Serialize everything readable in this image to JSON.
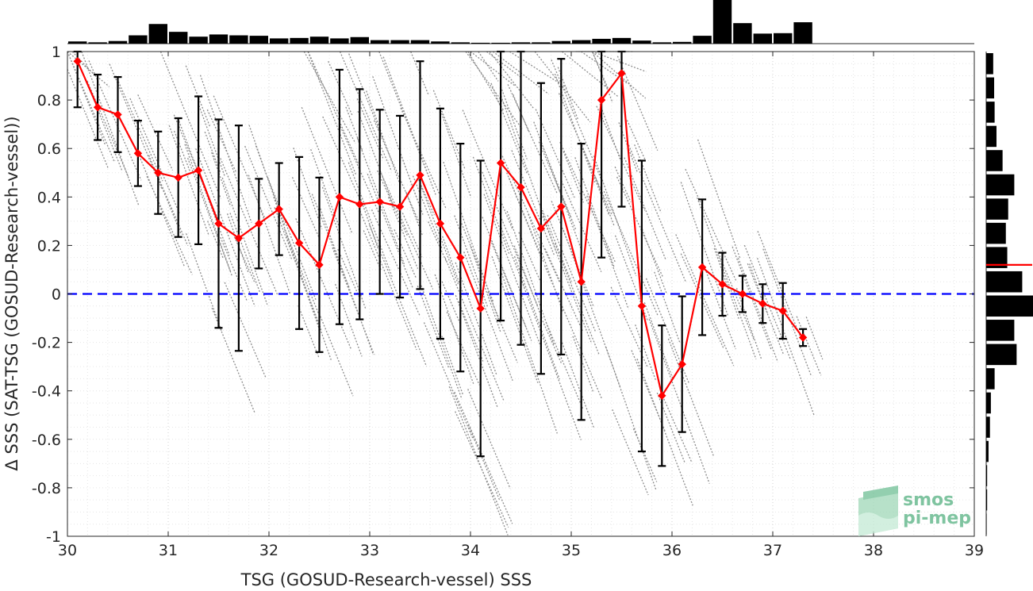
{
  "chart_data": {
    "type": "scatter",
    "title": "",
    "xlabel": "TSG (GOSUD-Research-vessel) SSS",
    "ylabel": "Δ SSS (SAT-TSG (GOSUD-Research-vessel))",
    "xlim": [
      30,
      39
    ],
    "ylim": [
      -1,
      1
    ],
    "xticks": [
      30,
      31,
      32,
      33,
      34,
      35,
      36,
      37,
      38,
      39
    ],
    "yticks": [
      -1,
      -0.8,
      -0.6,
      -0.4,
      -0.2,
      0,
      0.2,
      0.4,
      0.6,
      0.8,
      1
    ],
    "grid": "minor dotted",
    "zero_line": {
      "y": 0,
      "style": "dashed",
      "color": "#0000ff"
    },
    "binned_mean": {
      "color": "#ff0000",
      "x": [
        30.1,
        30.3,
        30.5,
        30.7,
        30.9,
        31.1,
        31.3,
        31.5,
        31.7,
        31.9,
        32.1,
        32.3,
        32.5,
        32.7,
        32.9,
        33.1,
        33.3,
        33.5,
        33.7,
        33.9,
        34.1,
        34.3,
        34.5,
        34.7,
        34.9,
        35.1,
        35.3,
        35.5,
        35.7,
        35.9,
        36.1,
        36.3,
        36.5,
        36.7,
        36.9,
        37.1,
        37.3
      ],
      "mean": [
        0.96,
        0.77,
        0.74,
        0.58,
        0.5,
        0.48,
        0.51,
        0.29,
        0.23,
        0.29,
        0.35,
        0.21,
        0.12,
        0.4,
        0.37,
        0.38,
        0.36,
        0.49,
        0.29,
        0.15,
        -0.06,
        0.54,
        0.44,
        0.27,
        0.36,
        0.05,
        0.8,
        0.91,
        -0.05,
        -0.42,
        -0.29,
        0.11,
        0.04,
        0.0,
        -0.04,
        -0.07,
        -0.18
      ],
      "std": [
        0.19,
        0.135,
        0.155,
        0.135,
        0.17,
        0.245,
        0.305,
        0.43,
        0.465,
        0.185,
        0.19,
        0.355,
        0.36,
        0.525,
        0.475,
        0.38,
        0.375,
        0.47,
        0.475,
        0.47,
        0.61,
        0.65,
        0.65,
        0.6,
        0.61,
        0.57,
        0.65,
        0.55,
        0.6,
        0.29,
        0.28,
        0.28,
        0.13,
        0.075,
        0.08,
        0.115,
        0.035
      ]
    },
    "top_histogram": {
      "bin_centers": [
        30.1,
        30.3,
        30.5,
        30.7,
        30.9,
        31.1,
        31.3,
        31.5,
        31.7,
        31.9,
        32.1,
        32.3,
        32.5,
        32.7,
        32.9,
        33.1,
        33.3,
        33.5,
        33.7,
        33.9,
        34.1,
        34.3,
        34.5,
        34.7,
        34.9,
        35.1,
        35.3,
        35.5,
        35.7,
        35.9,
        36.1,
        36.3,
        36.5,
        36.7,
        36.9,
        37.1,
        37.3
      ],
      "relative_counts": [
        0.05,
        0.03,
        0.06,
        0.19,
        0.45,
        0.27,
        0.16,
        0.21,
        0.19,
        0.18,
        0.12,
        0.13,
        0.16,
        0.12,
        0.15,
        0.08,
        0.08,
        0.08,
        0.05,
        0.03,
        0.02,
        0.02,
        0.03,
        0.03,
        0.06,
        0.08,
        0.11,
        0.13,
        0.07,
        0.03,
        0.04,
        0.18,
        1.0,
        0.47,
        0.23,
        0.24,
        0.49
      ]
    },
    "right_histogram": {
      "bin_centers": [
        0.95,
        0.85,
        0.75,
        0.65,
        0.55,
        0.45,
        0.35,
        0.25,
        0.15,
        0.05,
        -0.05,
        -0.15,
        -0.25,
        -0.35,
        -0.45,
        -0.55,
        -0.65,
        -0.75,
        -0.85,
        -0.95
      ],
      "relative_counts": [
        0.15,
        0.17,
        0.18,
        0.22,
        0.35,
        0.6,
        0.47,
        0.42,
        0.45,
        0.77,
        1.0,
        0.6,
        0.65,
        0.18,
        0.1,
        0.08,
        0.05,
        0.02,
        0.02,
        0.01
      ],
      "mean_marker": 0.12,
      "mean_marker_color": "#ff0000"
    }
  },
  "logo": {
    "line1": "smos",
    "line2": "pi-mep"
  }
}
